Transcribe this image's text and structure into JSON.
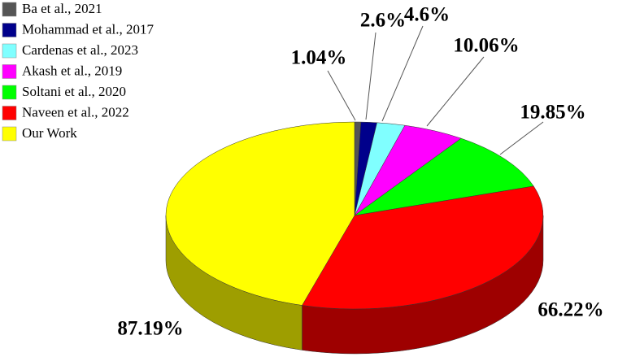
{
  "chart_data": {
    "type": "pie3d",
    "categories": [
      "Ba et al., 2021",
      "Mohammad et al., 2017",
      "Cardenas et al., 2023",
      "Akash et al., 2019",
      "Soltani et al., 2020",
      "Naveen et al., 2022",
      "Our Work"
    ],
    "values": [
      1.04,
      2.6,
      4.6,
      10.06,
      19.85,
      66.22,
      87.19
    ],
    "value_labels": [
      "1.04%",
      "2.6%",
      "4.6%",
      "10.06%",
      "19.85%",
      "66.22%",
      "87.19%"
    ],
    "colors": [
      "#555555",
      "#00008b",
      "#80ffff",
      "#ff00ff",
      "#00ff00",
      "#ff0000",
      "#ffff00"
    ],
    "legend": "top-left"
  }
}
